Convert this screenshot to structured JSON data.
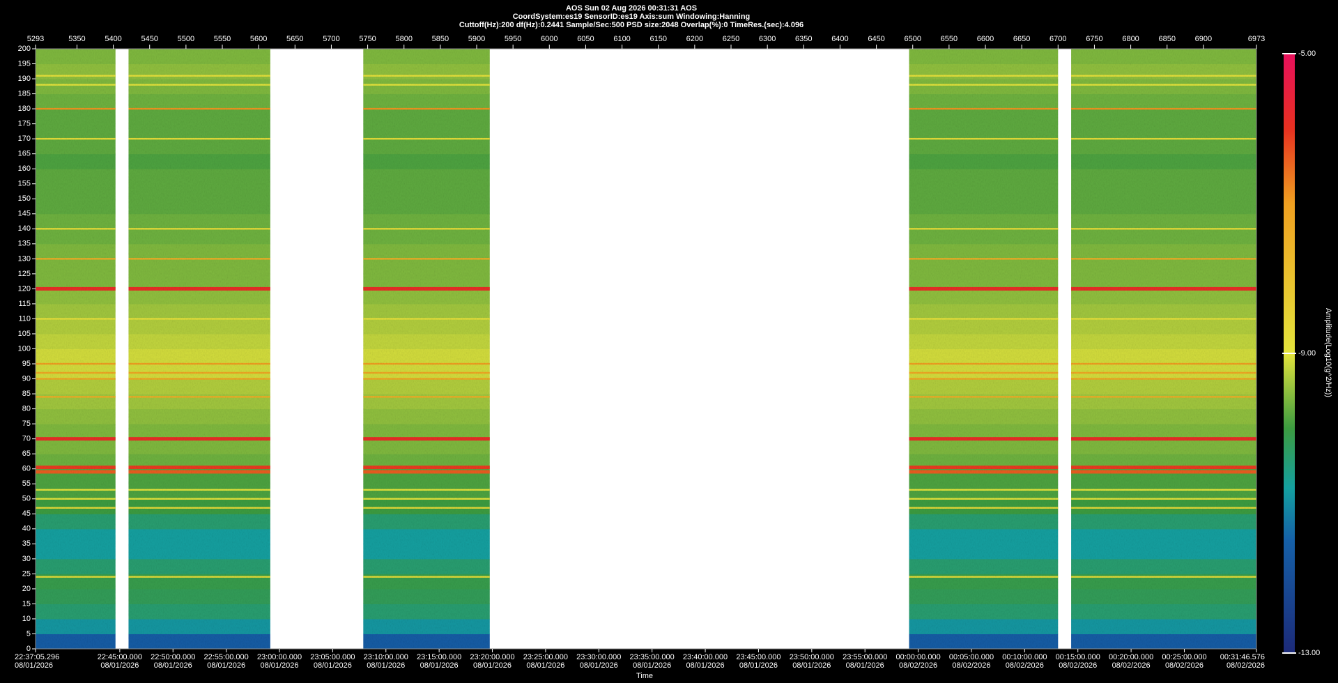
{
  "chart_data": {
    "type": "spectrogram",
    "title": [
      "AOS  Sun 02 Aug 2026 00:31:31  AOS",
      "CoordSystem:es19   SensorID:es19    Axis:sum    Windowing:Hanning",
      "Cuttoff(Hz):200      df(Hz):0.2441      Sample/Sec:500      PSD size:2048      Overlap(%):0      TimeRes.(sec):4.096"
    ],
    "xlabel": "Time",
    "colorbar_label": "Amplitude(Log10(g^2/Hz))",
    "xlim": [
      5293,
      6973
    ],
    "xticks": [
      5293,
      5350,
      5400,
      5450,
      5500,
      5550,
      5600,
      5650,
      5700,
      5750,
      5800,
      5850,
      5900,
      5950,
      6000,
      6050,
      6100,
      6150,
      6200,
      6250,
      6300,
      6350,
      6400,
      6450,
      6500,
      6550,
      6600,
      6650,
      6700,
      6750,
      6800,
      6850,
      6900,
      6973
    ],
    "x2lim": [
      1357.0883,
      1471.7763
    ],
    "x2ticks": [
      {
        "value": 1357.0883,
        "label": "22:37:05.296",
        "date": "08/01/2026"
      },
      {
        "value": 1365,
        "label": "22:45:00.000",
        "date": "08/01/2026"
      },
      {
        "value": 1370,
        "label": "22:50:00.000",
        "date": "08/01/2026"
      },
      {
        "value": 1375,
        "label": "22:55:00.000",
        "date": "08/01/2026"
      },
      {
        "value": 1380,
        "label": "23:00:00.000",
        "date": "08/01/2026"
      },
      {
        "value": 1385,
        "label": "23:05:00.000",
        "date": "08/01/2026"
      },
      {
        "value": 1390,
        "label": "23:10:00.000",
        "date": "08/01/2026"
      },
      {
        "value": 1395,
        "label": "23:15:00.000",
        "date": "08/01/2026"
      },
      {
        "value": 1400,
        "label": "23:20:00.000",
        "date": "08/01/2026"
      },
      {
        "value": 1405,
        "label": "23:25:00.000",
        "date": "08/01/2026"
      },
      {
        "value": 1410,
        "label": "23:30:00.000",
        "date": "08/01/2026"
      },
      {
        "value": 1415,
        "label": "23:35:00.000",
        "date": "08/01/2026"
      },
      {
        "value": 1420,
        "label": "23:40:00.000",
        "date": "08/01/2026"
      },
      {
        "value": 1425,
        "label": "23:45:00.000",
        "date": "08/01/2026"
      },
      {
        "value": 1430,
        "label": "23:50:00.000",
        "date": "08/01/2026"
      },
      {
        "value": 1435,
        "label": "23:55:00.000",
        "date": "08/01/2026"
      },
      {
        "value": 1440,
        "label": "00:00:00.000",
        "date": "08/02/2026"
      },
      {
        "value": 1445,
        "label": "00:05:00.000",
        "date": "08/02/2026"
      },
      {
        "value": 1450,
        "label": "00:10:00.000",
        "date": "08/02/2026"
      },
      {
        "value": 1455,
        "label": "00:15:00.000",
        "date": "08/02/2026"
      },
      {
        "value": 1460,
        "label": "00:20:00.000",
        "date": "08/02/2026"
      },
      {
        "value": 1465,
        "label": "00:25:00.000",
        "date": "08/02/2026"
      },
      {
        "value": 1471.7763,
        "label": "00:31:46.576",
        "date": "08/02/2026"
      }
    ],
    "ylim": [
      0,
      200
    ],
    "yticks": [
      0,
      5,
      10,
      15,
      20,
      25,
      30,
      35,
      40,
      45,
      50,
      55,
      60,
      65,
      70,
      75,
      80,
      85,
      90,
      95,
      100,
      105,
      110,
      115,
      120,
      125,
      130,
      135,
      140,
      145,
      150,
      155,
      160,
      165,
      170,
      175,
      180,
      185,
      190,
      195,
      200
    ],
    "clim": [
      -13,
      -5
    ],
    "cticks": [
      {
        "value": -13,
        "label": "-13.00"
      },
      {
        "value": -9,
        "label": "-9.00"
      },
      {
        "value": -5,
        "label": "-5.00"
      }
    ],
    "colormap": [
      {
        "value": -13,
        "color": "#1c2a78"
      },
      {
        "value": -11.5,
        "color": "#1560a8"
      },
      {
        "value": -10.8,
        "color": "#14a0a0"
      },
      {
        "value": -10,
        "color": "#3c9c40"
      },
      {
        "value": -9,
        "color": "#e4e43c"
      },
      {
        "value": -7,
        "color": "#f0a020"
      },
      {
        "value": -6,
        "color": "#e83020"
      },
      {
        "value": -5,
        "color": "#e8105c"
      }
    ],
    "segments": [
      [
        5293,
        5403
      ],
      [
        5421,
        5616
      ],
      [
        5744,
        5918
      ],
      [
        6495,
        6700
      ],
      [
        6718,
        6973
      ]
    ],
    "bands": {
      "freqs": [
        0,
        5,
        10,
        15,
        20,
        25,
        30,
        35,
        40,
        45,
        50,
        55,
        60,
        65,
        70,
        75,
        80,
        85,
        90,
        95,
        100,
        105,
        110,
        115,
        120,
        125,
        130,
        135,
        140,
        145,
        150,
        155,
        160,
        165,
        170,
        175,
        180,
        185,
        190,
        195
      ],
      "levels": [
        -11.6,
        -10.9,
        -10.4,
        -10.2,
        -10.1,
        -10.4,
        -10.8,
        -10.8,
        -10.4,
        -10.0,
        -9.9,
        -9.9,
        -9.7,
        -9.6,
        -9.6,
        -9.5,
        -9.4,
        -9.3,
        -9.1,
        -9.1,
        -9.2,
        -9.3,
        -9.4,
        -9.5,
        -9.6,
        -9.6,
        -9.6,
        -9.7,
        -9.7,
        -9.8,
        -9.8,
        -9.8,
        -9.9,
        -9.8,
        -9.8,
        -9.8,
        -9.7,
        -9.6,
        -9.5,
        -9.6
      ]
    },
    "tones": {
      "freqs": [
        24,
        47,
        50,
        53,
        59,
        60.5,
        70,
        84,
        90,
        92,
        95,
        110,
        120,
        130,
        140,
        170,
        180,
        188,
        191
      ],
      "levels": [
        -8.8,
        -8.7,
        -9.0,
        -9.0,
        -6.4,
        -6.1,
        -5.9,
        -7.4,
        -7.2,
        -7.2,
        -7.0,
        -8.9,
        -5.9,
        -7.4,
        -8.8,
        -8.8,
        -6.9,
        -9.0,
        -8.9
      ]
    }
  }
}
